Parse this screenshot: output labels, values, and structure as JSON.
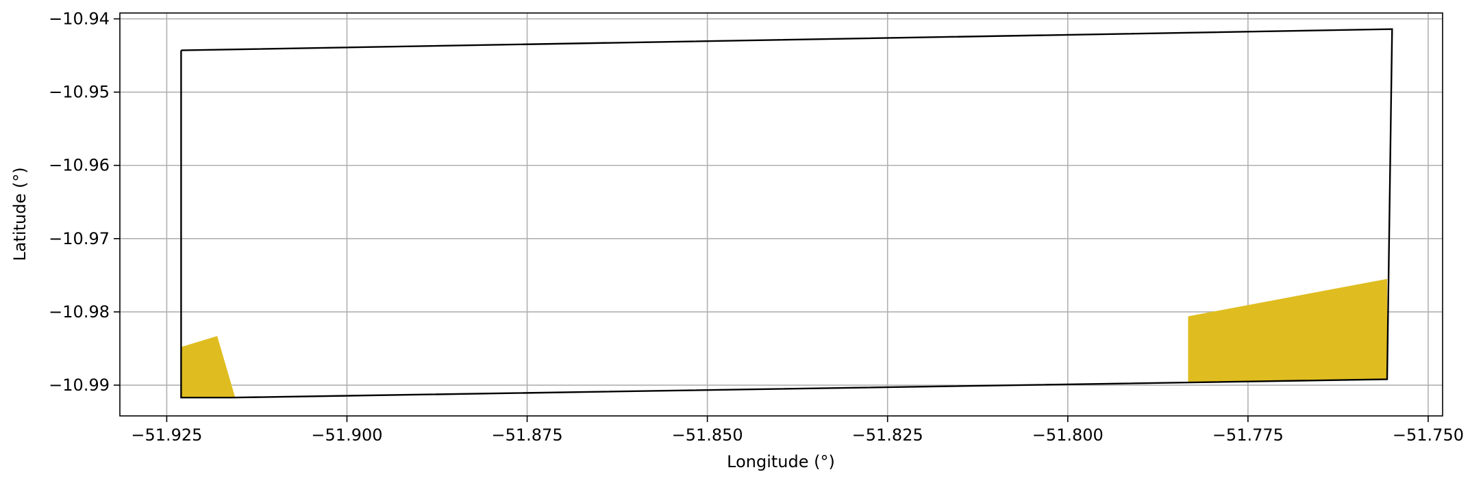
{
  "chart_data": {
    "type": "map",
    "xlabel": "Longitude (°)",
    "ylabel": "Latitude (°)",
    "xlim": [
      -51.9315,
      -51.748
    ],
    "ylim": [
      -10.9942,
      -10.9392
    ],
    "grid": true,
    "x_ticks": [
      {
        "value": -51.925,
        "label": "−51.925"
      },
      {
        "value": -51.9,
        "label": "−51.900"
      },
      {
        "value": -51.875,
        "label": "−51.875"
      },
      {
        "value": -51.85,
        "label": "−51.850"
      },
      {
        "value": -51.825,
        "label": "−51.825"
      },
      {
        "value": -51.8,
        "label": "−51.800"
      },
      {
        "value": -51.775,
        "label": "−51.775"
      },
      {
        "value": -51.75,
        "label": "−51.750"
      }
    ],
    "y_ticks": [
      {
        "value": -10.94,
        "label": "−10.94"
      },
      {
        "value": -10.95,
        "label": "−10.95"
      },
      {
        "value": -10.96,
        "label": "−10.96"
      },
      {
        "value": -10.97,
        "label": "−10.97"
      },
      {
        "value": -10.98,
        "label": "−10.98"
      },
      {
        "value": -10.99,
        "label": "−10.99"
      }
    ],
    "boundary": {
      "stroke": "#000000",
      "points": [
        [
          -51.923,
          -10.9443
        ],
        [
          -51.755,
          -10.9414
        ],
        [
          -51.7557,
          -10.9892
        ],
        [
          -51.916,
          -10.9917
        ],
        [
          -51.923,
          -10.9917
        ],
        [
          -51.923,
          -10.9443
        ]
      ]
    },
    "areas": [
      {
        "color": "#dfbd20",
        "points": [
          [
            -51.923,
            -10.9848
          ],
          [
            -51.918,
            -10.9833
          ],
          [
            -51.9155,
            -10.9917
          ],
          [
            -51.923,
            -10.9917
          ]
        ]
      },
      {
        "color": "#dfbd20",
        "points": [
          [
            -51.7833,
            -10.9806
          ],
          [
            -51.7557,
            -10.9755
          ],
          [
            -51.7557,
            -10.9892
          ],
          [
            -51.7833,
            -10.9896
          ]
        ]
      }
    ]
  }
}
